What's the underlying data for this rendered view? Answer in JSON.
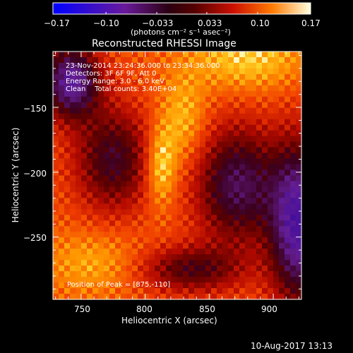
{
  "chart_data": {
    "type": "heatmap",
    "title": "Reconstructed RHESSI Image",
    "xlabel": "Heliocentric X (arcsec)",
    "ylabel": "Heliocentric Y (arcsec)",
    "xlim": [
      728,
      922
    ],
    "ylim": [
      -298,
      -107
    ],
    "x_ticks": [
      750,
      800,
      850,
      900
    ],
    "x_tick_labels": [
      "750",
      "800",
      "850",
      "900"
    ],
    "y_ticks": [
      -150,
      -200,
      -250
    ],
    "y_tick_labels": [
      "−150",
      "−200",
      "−250"
    ],
    "colorbar": {
      "label": "(photons cm⁻² s⁻¹ asec⁻²)",
      "range": [
        -0.17,
        0.17
      ],
      "ticks": [
        -0.17,
        -0.1,
        -0.033,
        0.033,
        0.1,
        0.17
      ],
      "tick_labels": [
        "−0.17",
        "−0.10",
        "−0.033",
        "0.033",
        "0.10",
        "0.17"
      ]
    },
    "peak": [
      875,
      -110
    ],
    "annotations": [
      "23-Nov-2014 23:24:36.000 to 23:34:36.000",
      "Detectors: 3F 6F 9F, Att 0",
      "Energy Range: 3.0 - 6.0 keV",
      "Clean    Total counts: 3.40E+04"
    ],
    "peak_label": "Position of Peak = [875,-110]"
  },
  "footer": {
    "timestamp": "10-Aug-2017 13:13"
  }
}
